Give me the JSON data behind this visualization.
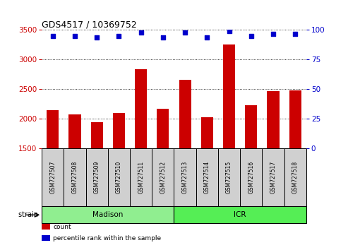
{
  "title": "GDS4517 / 10369752",
  "samples": [
    "GSM727507",
    "GSM727508",
    "GSM727509",
    "GSM727510",
    "GSM727511",
    "GSM727512",
    "GSM727513",
    "GSM727514",
    "GSM727515",
    "GSM727516",
    "GSM727517",
    "GSM727518"
  ],
  "counts": [
    2150,
    2075,
    1940,
    2100,
    2840,
    2165,
    2660,
    2020,
    3250,
    2230,
    2465,
    2475
  ],
  "percentiles": [
    95,
    95,
    94,
    95,
    98,
    94,
    98,
    94,
    99,
    95,
    97,
    97
  ],
  "groups": [
    {
      "name": "Madison",
      "start": 0,
      "end": 6,
      "color": "#90EE90"
    },
    {
      "name": "ICR",
      "start": 6,
      "end": 12,
      "color": "#55EE55"
    }
  ],
  "ylim_left": [
    1500,
    3500
  ],
  "ylim_right": [
    0,
    100
  ],
  "yticks_left": [
    1500,
    2000,
    2500,
    3000,
    3500
  ],
  "yticks_right": [
    0,
    25,
    50,
    75,
    100
  ],
  "bar_color": "#CC0000",
  "dot_color": "#0000CC",
  "bar_width": 0.55,
  "bg_color": "#FFFFFF",
  "tick_label_color_left": "#CC0000",
  "tick_label_color_right": "#0000CC",
  "sample_box_color": "#D0D0D0",
  "legend_items": [
    {
      "label": "count",
      "color": "#CC0000"
    },
    {
      "label": "percentile rank within the sample",
      "color": "#0000CC"
    }
  ]
}
